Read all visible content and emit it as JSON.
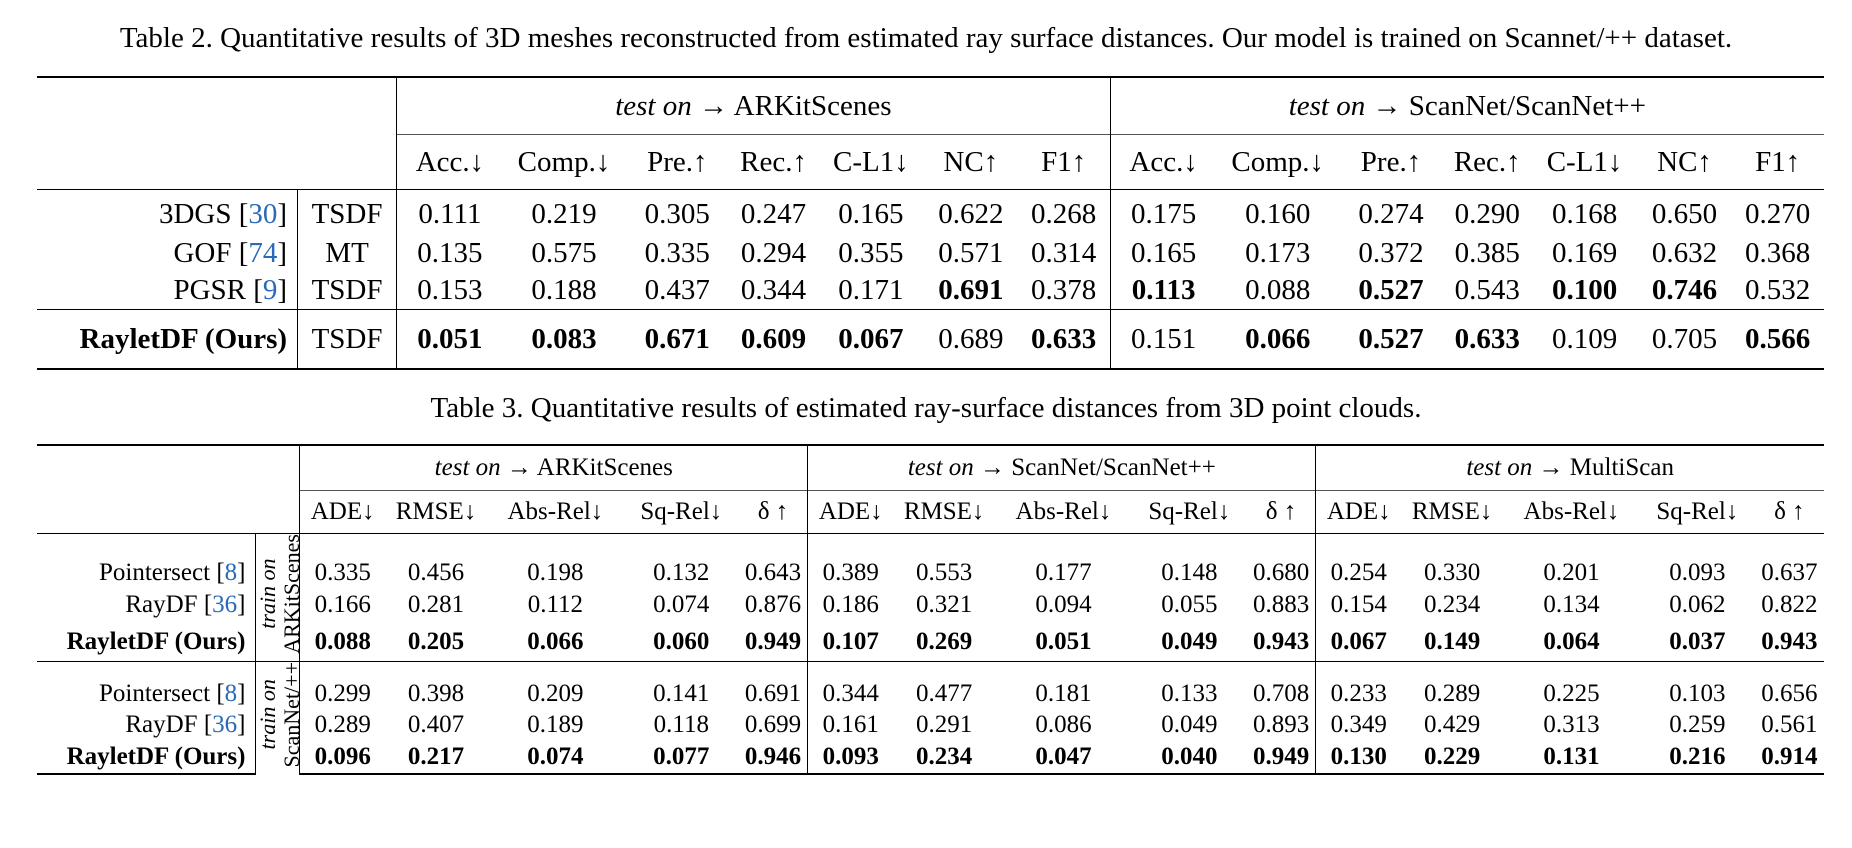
{
  "table2": {
    "caption": "Table 2. Quantitative results of 3D meshes reconstructed from estimated ray surface distances. Our model is trained on Scannet/++ dataset.",
    "group_prefix": "test on",
    "arrow": "→",
    "groups": [
      "ARKitScenes",
      "ScanNet/ScanNet++"
    ],
    "metrics": [
      "Acc.↓",
      "Comp.↓",
      "Pre.↑",
      "Rec.↑",
      "C-L1↓",
      "NC↑",
      "F1↑"
    ],
    "rows": [
      {
        "name": "3DGS",
        "ref": "30",
        "method": "TSDF",
        "values": [
          "0.111",
          "0.219",
          "0.305",
          "0.247",
          "0.165",
          "0.622",
          "0.268",
          "0.175",
          "0.160",
          "0.274",
          "0.290",
          "0.168",
          "0.650",
          "0.270"
        ]
      },
      {
        "name": "GOF",
        "ref": "74",
        "method": "MT",
        "values": [
          "0.135",
          "0.575",
          "0.335",
          "0.294",
          "0.355",
          "0.571",
          "0.314",
          "0.165",
          "0.173",
          "0.372",
          "0.385",
          "0.169",
          "0.632",
          "0.368"
        ]
      },
      {
        "name": "PGSR",
        "ref": "9",
        "method": "TSDF",
        "values": [
          "0.153",
          "0.188",
          "0.437",
          "0.344",
          "0.171",
          "0.691",
          "0.378",
          "0.113",
          "0.088",
          "0.527",
          "0.543",
          "0.100",
          "0.746",
          "0.532"
        ]
      },
      {
        "name": "RayletDF (Ours)",
        "ref": "",
        "method": "TSDF",
        "values": [
          "0.051",
          "0.083",
          "0.671",
          "0.609",
          "0.067",
          "0.689",
          "0.633",
          "0.151",
          "0.066",
          "0.527",
          "0.633",
          "0.109",
          "0.705",
          "0.566"
        ]
      }
    ]
  },
  "table3": {
    "caption": "Table 3. Quantitative results of estimated ray-surface distances from 3D point clouds.",
    "group_prefix": "test on",
    "arrow": "→",
    "groups": [
      "ARKitScenes",
      "ScanNet/ScanNet++",
      "MultiScan"
    ],
    "metrics": [
      "ADE↓",
      "RMSE↓",
      "Abs-Rel↓",
      "Sq-Rel↓",
      "δ ↑"
    ],
    "train_label": "train on",
    "blocks": [
      {
        "train_set": "ARKitScenes",
        "rows": [
          {
            "name": "Pointersect",
            "ref": "8",
            "values": [
              "0.335",
              "0.456",
              "0.198",
              "0.132",
              "0.643",
              "0.389",
              "0.553",
              "0.177",
              "0.148",
              "0.680",
              "0.254",
              "0.330",
              "0.201",
              "0.093",
              "0.637"
            ]
          },
          {
            "name": "RayDF",
            "ref": "36",
            "values": [
              "0.166",
              "0.281",
              "0.112",
              "0.074",
              "0.876",
              "0.186",
              "0.321",
              "0.094",
              "0.055",
              "0.883",
              "0.154",
              "0.234",
              "0.134",
              "0.062",
              "0.822"
            ]
          },
          {
            "name": "RayletDF (Ours)",
            "ref": "",
            "values": [
              "0.088",
              "0.205",
              "0.066",
              "0.060",
              "0.949",
              "0.107",
              "0.269",
              "0.051",
              "0.049",
              "0.943",
              "0.067",
              "0.149",
              "0.064",
              "0.037",
              "0.943"
            ]
          }
        ]
      },
      {
        "train_set": "ScanNet/++",
        "rows": [
          {
            "name": "Pointersect",
            "ref": "8",
            "values": [
              "0.299",
              "0.398",
              "0.209",
              "0.141",
              "0.691",
              "0.344",
              "0.477",
              "0.181",
              "0.133",
              "0.708",
              "0.233",
              "0.289",
              "0.225",
              "0.103",
              "0.656"
            ]
          },
          {
            "name": "RayDF",
            "ref": "36",
            "values": [
              "0.289",
              "0.407",
              "0.189",
              "0.118",
              "0.699",
              "0.161",
              "0.291",
              "0.086",
              "0.049",
              "0.893",
              "0.349",
              "0.429",
              "0.313",
              "0.259",
              "0.561"
            ]
          },
          {
            "name": "RayletDF (Ours)",
            "ref": "",
            "values": [
              "0.096",
              "0.217",
              "0.074",
              "0.077",
              "0.946",
              "0.093",
              "0.234",
              "0.047",
              "0.040",
              "0.949",
              "0.130",
              "0.229",
              "0.131",
              "0.216",
              "0.914"
            ]
          }
        ]
      }
    ]
  }
}
